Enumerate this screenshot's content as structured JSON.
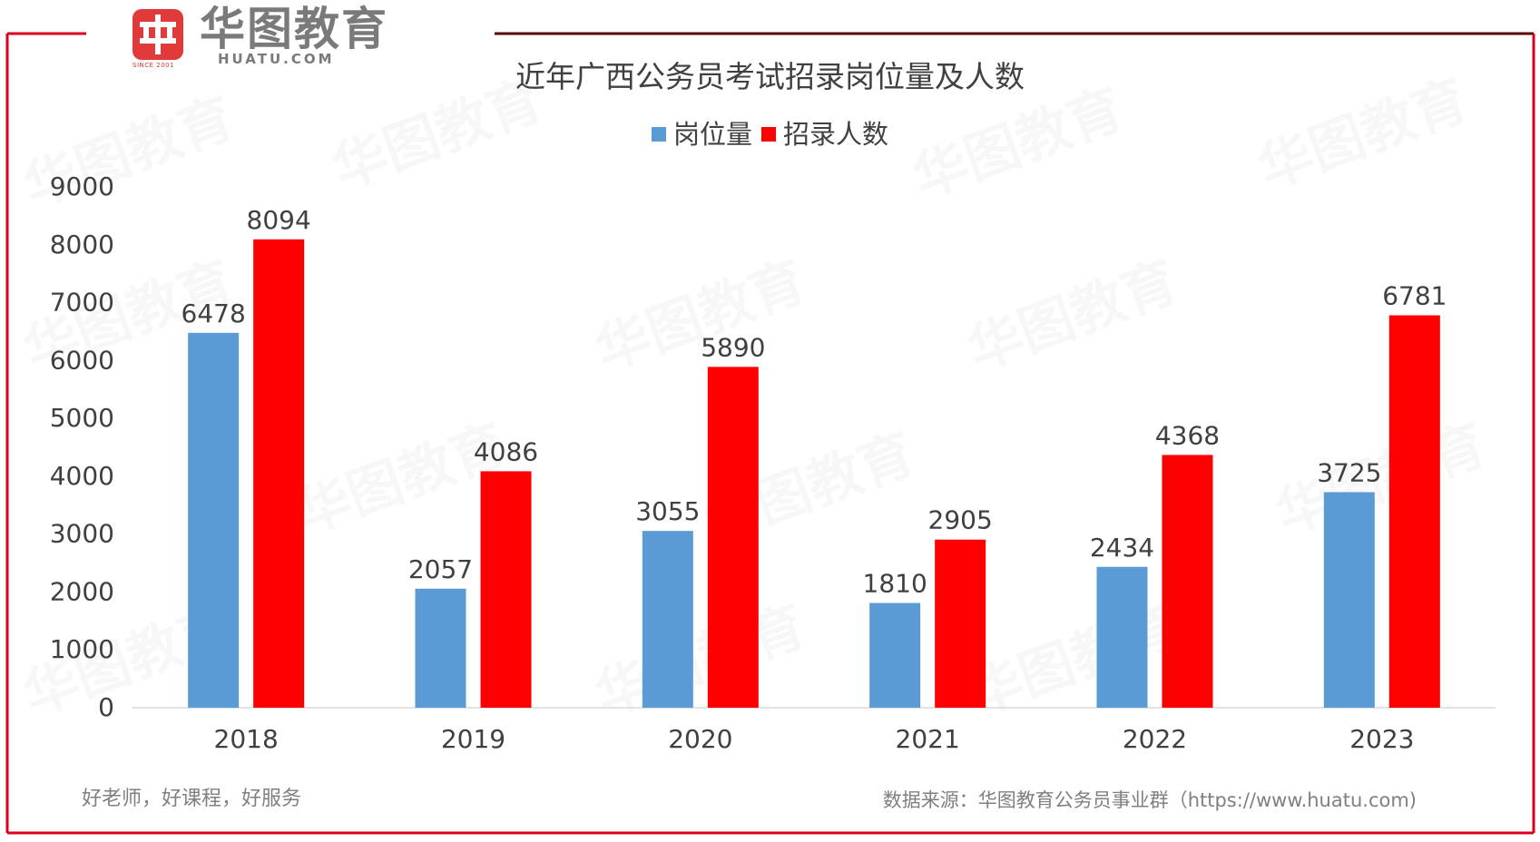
{
  "logo": {
    "mark": "华",
    "name": "华图教育",
    "domain": "HUATU.COM",
    "since": "SINCE 2001"
  },
  "colors": {
    "frame": "#d9001b",
    "frame_top": "#5a0000",
    "series_positions": "#5b9bd5",
    "series_recruits": "#ff0000"
  },
  "watermark_text": "华图教育",
  "chart_data": {
    "type": "bar",
    "title": "近年广西公务员考试招录岗位量及人数",
    "categories": [
      "2018",
      "2019",
      "2020",
      "2021",
      "2022",
      "2023"
    ],
    "series": [
      {
        "name": "岗位量",
        "color": "#5b9bd5",
        "values": [
          6478,
          2057,
          3055,
          1810,
          2434,
          3725
        ]
      },
      {
        "name": "招录人数",
        "color": "#ff0000",
        "values": [
          8094,
          4086,
          5890,
          2905,
          4368,
          6781
        ]
      }
    ],
    "ylim": [
      0,
      9000
    ],
    "yticks": [
      0,
      1000,
      2000,
      3000,
      4000,
      5000,
      6000,
      7000,
      8000,
      9000
    ],
    "xlabel": "",
    "ylabel": "",
    "legend": "top-center",
    "grid": false
  },
  "footer": {
    "slogan": "好老师，好课程，好服务",
    "source": "数据来源：华图教育公务员事业群（https://www.huatu.com)"
  }
}
